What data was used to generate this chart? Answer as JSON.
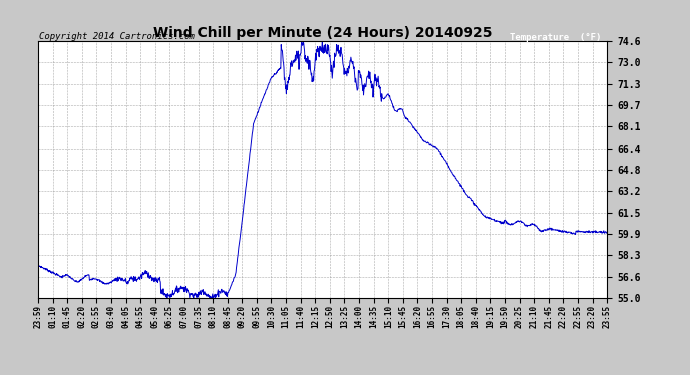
{
  "title": "Wind Chill per Minute (24 Hours) 20140925",
  "copyright": "Copyright 2014 Cartronics.com",
  "legend_label": "Temperature  (°F)",
  "line_color": "#0000CC",
  "bg_color": "#C8C8C8",
  "plot_bg_color": "#FFFFFF",
  "grid_color": "#888888",
  "ylim": [
    55.0,
    74.6
  ],
  "yticks": [
    55.0,
    56.6,
    58.3,
    59.9,
    61.5,
    63.2,
    64.8,
    66.4,
    68.1,
    69.7,
    71.3,
    73.0,
    74.6
  ],
  "xtick_labels": [
    "23:59",
    "01:10",
    "01:45",
    "02:20",
    "02:55",
    "03:40",
    "04:05",
    "04:55",
    "05:40",
    "06:25",
    "07:00",
    "07:35",
    "08:10",
    "08:45",
    "09:20",
    "09:55",
    "10:30",
    "11:05",
    "11:40",
    "12:15",
    "12:50",
    "13:25",
    "14:00",
    "14:35",
    "15:10",
    "15:45",
    "16:20",
    "16:55",
    "17:30",
    "18:05",
    "18:40",
    "19:15",
    "19:50",
    "20:25",
    "21:10",
    "21:45",
    "22:20",
    "22:55",
    "23:20",
    "23:55"
  ]
}
